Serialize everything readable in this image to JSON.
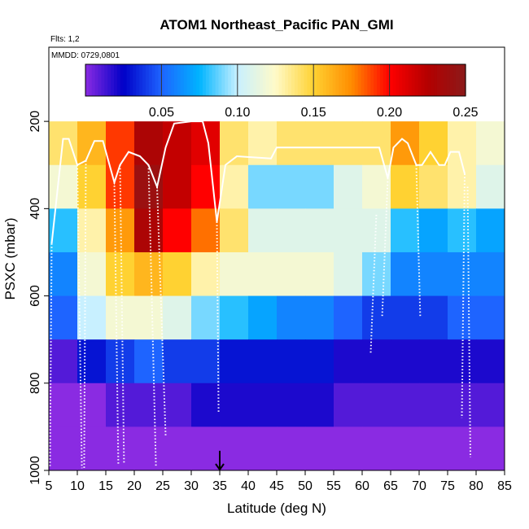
{
  "chart_data": {
    "type": "heatmap",
    "title": "ATOM1 Northeast_Pacific PAN_GMI",
    "flights_note": "Flts: 1,2",
    "date_note": "MMDD: 0729,0801",
    "xlabel": "Latitude (deg N)",
    "ylabel": "PSXC (mbar)",
    "xlim": [
      5,
      85
    ],
    "ylim": [
      1000,
      30
    ],
    "x_ticks": [
      5,
      10,
      15,
      20,
      25,
      30,
      35,
      40,
      45,
      50,
      55,
      60,
      65,
      70,
      75,
      80,
      85
    ],
    "y_ticks": [
      200,
      400,
      600,
      800,
      1000
    ],
    "colorbar": {
      "min": 0,
      "max": 0.25,
      "ticks": [
        0.05,
        0.1,
        0.15,
        0.2,
        0.25
      ],
      "tick_labels": [
        "0.05",
        "0.10",
        "0.15",
        "0.20",
        "0.25"
      ],
      "colors": [
        "#8a2be2",
        "#0000c8",
        "#1e64ff",
        "#00b4ff",
        "#c8f0ff",
        "#fffac8",
        "#ffd232",
        "#ff8c00",
        "#ff0000",
        "#b40000",
        "#8b1a1a"
      ]
    },
    "lat_bins": [
      5,
      10,
      15,
      20,
      25,
      30,
      35,
      40,
      45,
      50,
      55,
      60,
      65,
      70,
      75,
      80
    ],
    "pressure_bins": [
      200,
      300,
      400,
      500,
      600,
      700,
      800,
      900,
      1000
    ],
    "values_PAN_ppb": [
      [
        0.14,
        0.16,
        0.19,
        0.23,
        0.22,
        0.21,
        0.14,
        0.13,
        0.14,
        0.14,
        0.14,
        0.14,
        0.17,
        0.15,
        0.13,
        0.12
      ],
      [
        0.12,
        0.15,
        0.19,
        0.24,
        0.22,
        0.2,
        0.13,
        0.09,
        0.09,
        0.09,
        0.11,
        0.12,
        0.15,
        0.14,
        0.13,
        0.11
      ],
      [
        0.08,
        0.13,
        0.17,
        0.23,
        0.2,
        0.18,
        0.14,
        0.11,
        0.11,
        0.11,
        0.11,
        0.11,
        0.08,
        0.07,
        0.08,
        0.07
      ],
      [
        0.06,
        0.12,
        0.15,
        0.16,
        0.15,
        0.13,
        0.12,
        0.12,
        0.12,
        0.12,
        0.11,
        0.09,
        0.06,
        0.06,
        0.06,
        0.06
      ],
      [
        0.05,
        0.1,
        0.12,
        0.12,
        0.11,
        0.09,
        0.08,
        0.07,
        0.06,
        0.06,
        0.05,
        0.04,
        0.04,
        0.04,
        0.05,
        0.05
      ],
      [
        0.01,
        0.03,
        0.04,
        0.05,
        0.04,
        0.04,
        0.03,
        0.03,
        0.03,
        0.03,
        0.02,
        0.02,
        0.02,
        0.02,
        0.02,
        0.02
      ],
      [
        0.0,
        0.0,
        0.01,
        0.01,
        0.01,
        0.02,
        0.02,
        0.02,
        0.02,
        0.02,
        0.01,
        0.01,
        0.01,
        0.01,
        0.01,
        0.01
      ],
      [
        0.0,
        0.0,
        0.0,
        0.0,
        0.0,
        0.0,
        0.0,
        0.0,
        0.0,
        0.0,
        0.0,
        0.0,
        0.0,
        0.0,
        0.0,
        0.0
      ]
    ],
    "flight_track_solid": [
      {
        "x": 5.5,
        "y": 480
      },
      {
        "x": 7.5,
        "y": 240
      },
      {
        "x": 8.5,
        "y": 240
      },
      {
        "x": 10,
        "y": 300
      },
      {
        "x": 11.5,
        "y": 290
      },
      {
        "x": 13,
        "y": 245
      },
      {
        "x": 14.5,
        "y": 245
      },
      {
        "x": 16.5,
        "y": 340
      },
      {
        "x": 17.5,
        "y": 300
      },
      {
        "x": 19,
        "y": 270
      },
      {
        "x": 21,
        "y": 280
      },
      {
        "x": 22.5,
        "y": 300
      },
      {
        "x": 24,
        "y": 350
      },
      {
        "x": 25.5,
        "y": 260
      },
      {
        "x": 27,
        "y": 205
      },
      {
        "x": 30,
        "y": 200
      },
      {
        "x": 32,
        "y": 200
      },
      {
        "x": 33,
        "y": 250
      },
      {
        "x": 34.5,
        "y": 430
      },
      {
        "x": 36,
        "y": 300
      },
      {
        "x": 38,
        "y": 280
      },
      {
        "x": 44,
        "y": 285
      },
      {
        "x": 45,
        "y": 260
      },
      {
        "x": 55,
        "y": 260
      },
      {
        "x": 63,
        "y": 260
      },
      {
        "x": 64.5,
        "y": 330
      },
      {
        "x": 65.5,
        "y": 260
      },
      {
        "x": 67,
        "y": 240
      },
      {
        "x": 68,
        "y": 250
      },
      {
        "x": 69.5,
        "y": 300
      },
      {
        "x": 70.5,
        "y": 300
      },
      {
        "x": 72,
        "y": 270
      },
      {
        "x": 73.5,
        "y": 300
      },
      {
        "x": 74.5,
        "y": 300
      },
      {
        "x": 75.5,
        "y": 270
      },
      {
        "x": 77,
        "y": 270
      },
      {
        "x": 78,
        "y": 320
      }
    ],
    "flight_track_dotted": [
      [
        {
          "x": 5.5,
          "y": 480
        },
        {
          "x": 5.2,
          "y": 990
        }
      ],
      [
        {
          "x": 10,
          "y": 300
        },
        {
          "x": 10.8,
          "y": 995
        }
      ],
      [
        {
          "x": 11.5,
          "y": 290
        },
        {
          "x": 11.2,
          "y": 995
        }
      ],
      [
        {
          "x": 16.5,
          "y": 340
        },
        {
          "x": 17.2,
          "y": 985
        }
      ],
      [
        {
          "x": 17.5,
          "y": 300
        },
        {
          "x": 18.2,
          "y": 985
        }
      ],
      [
        {
          "x": 22.5,
          "y": 300
        },
        {
          "x": 23.8,
          "y": 990
        }
      ],
      [
        {
          "x": 24,
          "y": 350
        },
        {
          "x": 25.5,
          "y": 920
        }
      ],
      [
        {
          "x": 34.5,
          "y": 430
        },
        {
          "x": 34.8,
          "y": 870
        }
      ],
      [
        {
          "x": 61.5,
          "y": 730
        },
        {
          "x": 62.5,
          "y": 410
        }
      ],
      [
        {
          "x": 64.5,
          "y": 330
        },
        {
          "x": 63.5,
          "y": 650
        }
      ],
      [
        {
          "x": 69.5,
          "y": 300
        },
        {
          "x": 70.2,
          "y": 650
        }
      ],
      [
        {
          "x": 78,
          "y": 320
        },
        {
          "x": 77.5,
          "y": 880
        }
      ],
      [
        {
          "x": 78.5,
          "y": 350
        },
        {
          "x": 79,
          "y": 970
        }
      ]
    ],
    "marker_arrow": {
      "x": 35,
      "y_from": 955,
      "y_to": 1000
    }
  }
}
